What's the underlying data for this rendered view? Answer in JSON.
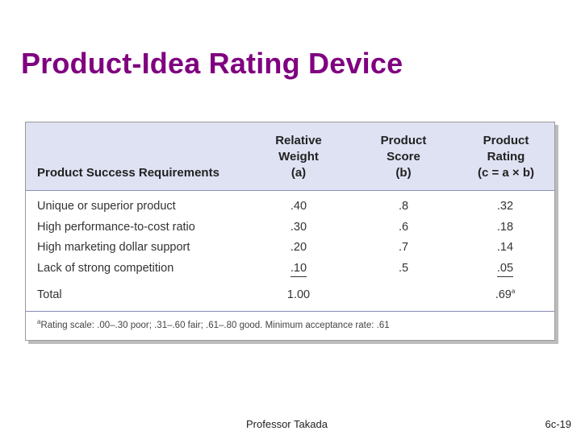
{
  "slide": {
    "title": "Product-Idea Rating Device",
    "presenter": "Professor Takada",
    "page_number": "6c-19"
  },
  "table": {
    "headers": {
      "requirement": "Product Success Requirements",
      "weight": [
        "Relative",
        "Weight",
        "(a)"
      ],
      "score": [
        "Product",
        "Score",
        "(b)"
      ],
      "rating": [
        "Product",
        "Rating",
        "(c = a × b)"
      ]
    },
    "rows": [
      {
        "requirement": "Unique or superior product",
        "weight": ".40",
        "score": ".8",
        "rating": ".32"
      },
      {
        "requirement": "High performance-to-cost ratio",
        "weight": ".30",
        "score": ".6",
        "rating": ".18"
      },
      {
        "requirement": "High marketing dollar support",
        "weight": ".20",
        "score": ".7",
        "rating": ".14"
      },
      {
        "requirement": "Lack of strong competition",
        "weight": ".10",
        "score": ".5",
        "rating": ".05"
      }
    ],
    "total": {
      "label": "Total",
      "weight": "1.00",
      "rating": ".69",
      "rating_sup": "a"
    },
    "footnote": {
      "marker": "a",
      "text": "Rating scale: .00–.30 poor; .31–.60 fair; .61–.80 good. Minimum acceptance rate: .61"
    }
  },
  "colors": {
    "title": "#800080",
    "header_band": "#dfe2f3"
  }
}
